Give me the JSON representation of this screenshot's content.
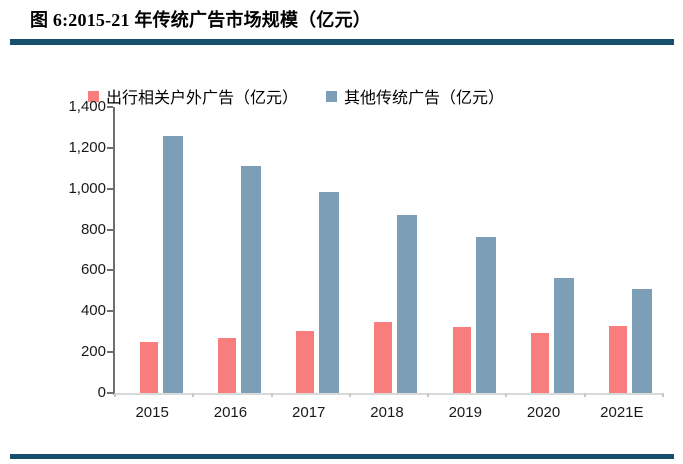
{
  "header": {
    "title": "图 6:2015-21 年传统广告市场规模（亿元）"
  },
  "colors": {
    "rule": "#17506E",
    "series1": "#F87E7E",
    "series2": "#7C9FB7",
    "axis_dark": "#6f6f6f",
    "axis_light": "#d9d9d9",
    "text": "#1a1a1a"
  },
  "chart_data": {
    "type": "bar",
    "title": "图 6:2015-21 年传统广告市场规模（亿元）",
    "categories": [
      "2015",
      "2016",
      "2017",
      "2018",
      "2019",
      "2020",
      "2021E"
    ],
    "series": [
      {
        "name": "出行相关户外广告（亿元）",
        "color": "#F87E7E",
        "values": [
          250,
          270,
          305,
          350,
          325,
          295,
          330
        ]
      },
      {
        "name": "其他传统广告（亿元）",
        "color": "#7C9FB7",
        "values": [
          1260,
          1110,
          985,
          870,
          765,
          565,
          510
        ]
      }
    ],
    "xlabel": "",
    "ylabel": "",
    "ylim": [
      0,
      1400
    ],
    "yticks": [
      {
        "label": "0",
        "value": 0
      },
      {
        "label": "200",
        "value": 200
      },
      {
        "label": "400",
        "value": 400
      },
      {
        "label": "600",
        "value": 600
      },
      {
        "label": "800",
        "value": 800
      },
      {
        "label": "1,000",
        "value": 1000
      },
      {
        "label": "1,200",
        "value": 1200
      },
      {
        "label": "1,400",
        "value": 1400
      }
    ],
    "grid": false,
    "legend_position": "top"
  }
}
